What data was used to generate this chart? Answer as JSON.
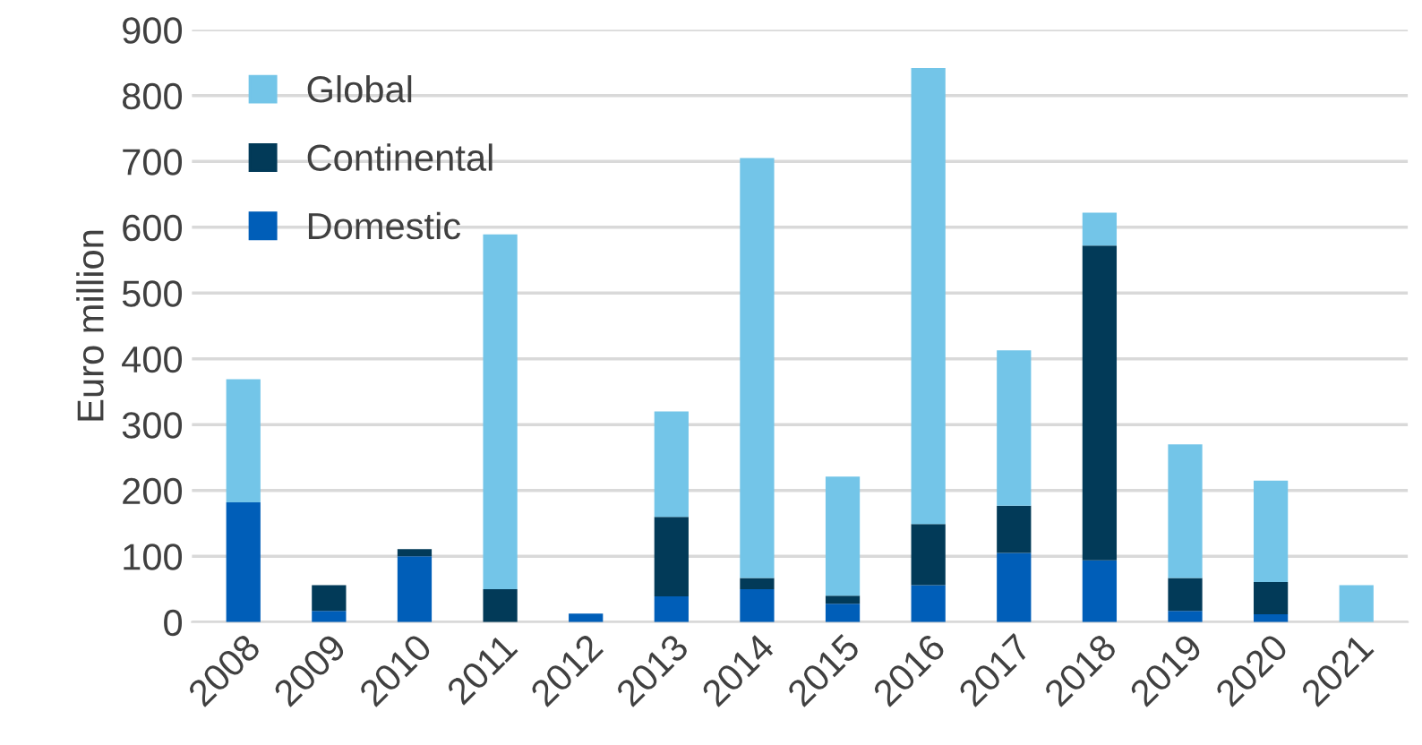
{
  "chart_data": {
    "type": "bar",
    "stacked": true,
    "ylabel": "Euro million",
    "categories": [
      "2008",
      "2009",
      "2010",
      "2011",
      "2012",
      "2013",
      "2014",
      "2015",
      "2016",
      "2017",
      "2018",
      "2019",
      "2020",
      "2021"
    ],
    "series": [
      {
        "name": "Domestic",
        "color": "#005eb8",
        "values": [
          182,
          17,
          100,
          0,
          13,
          39,
          50,
          28,
          56,
          105,
          94,
          17,
          12,
          0
        ]
      },
      {
        "name": "Continental",
        "color": "#023a58",
        "values": [
          0,
          39,
          11,
          50,
          0,
          121,
          17,
          12,
          93,
          72,
          478,
          50,
          49,
          0
        ]
      },
      {
        "name": "Global",
        "color": "#73c5e8",
        "values": [
          187,
          0,
          0,
          539,
          0,
          160,
          638,
          181,
          693,
          236,
          50,
          203,
          154,
          56
        ]
      }
    ],
    "ylim": [
      0,
      900
    ],
    "yticks": [
      0,
      100,
      200,
      300,
      400,
      500,
      600,
      700,
      800,
      900
    ],
    "grid": "y",
    "legend": "top left"
  }
}
